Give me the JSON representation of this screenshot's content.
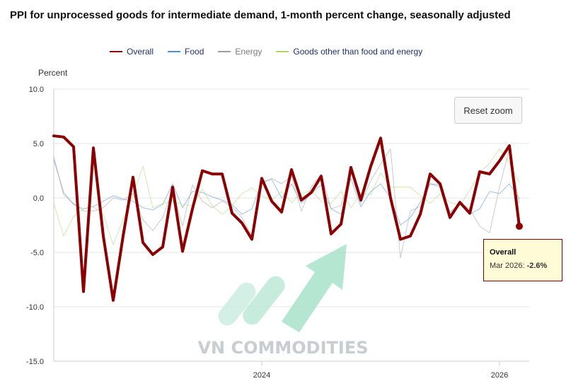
{
  "title": "PPI for unprocessed goods for intermediate demand, 1-month percent change, seasonally adjusted",
  "legend": [
    {
      "name": "Overall",
      "color": "#8b0000"
    },
    {
      "name": "Food",
      "color": "#4a90d9"
    },
    {
      "name": "Energy",
      "color": "#9e9e9e"
    },
    {
      "name": "Goods other than food and energy",
      "color": "#a8d86e"
    }
  ],
  "reset_zoom_label": "Reset zoom",
  "tooltip": {
    "series": "Overall",
    "label": "Mar 2026: ",
    "value": "-2.6%"
  },
  "watermark": "VN COMMODITIES",
  "chart_data": {
    "type": "line",
    "ylabel": "Percent",
    "ylim": [
      -15.0,
      10.0
    ],
    "yticks": [
      "10.0",
      "5.0",
      "0.0",
      "-5.0",
      "-10.0",
      "-15.0"
    ],
    "xlim": [
      "Apr 2022",
      "Apr 2026"
    ],
    "xticks": [
      {
        "label": "2024",
        "x": "Jan 2024"
      },
      {
        "label": "2026",
        "x": "Jan 2026"
      }
    ],
    "grid": true,
    "legend_position": "top",
    "x": [
      "Apr 2022",
      "May 2022",
      "Jun 2022",
      "Jul 2022",
      "Aug 2022",
      "Sep 2022",
      "Oct 2022",
      "Nov 2022",
      "Dec 2022",
      "Jan 2023",
      "Feb 2023",
      "Mar 2023",
      "Apr 2023",
      "May 2023",
      "Jun 2023",
      "Jul 2023",
      "Aug 2023",
      "Sep 2023",
      "Oct 2023",
      "Nov 2023",
      "Dec 2023",
      "Jan 2024",
      "Feb 2024",
      "Mar 2024",
      "Apr 2024",
      "May 2024",
      "Jun 2024",
      "Jul 2024",
      "Aug 2024",
      "Sep 2024",
      "Oct 2024",
      "Nov 2024",
      "Dec 2024",
      "Jan 2025",
      "Feb 2025",
      "Mar 2025",
      "Apr 2025",
      "May 2025",
      "Jun 2025",
      "Jul 2025",
      "Aug 2025",
      "Sep 2025",
      "Oct 2025",
      "Nov 2025",
      "Dec 2025",
      "Jan 2026",
      "Feb 2026",
      "Mar 2026"
    ],
    "series": [
      {
        "name": "Overall",
        "color": "#8b0000",
        "values": [
          5.7,
          5.6,
          4.7,
          -8.6,
          4.6,
          -3.5,
          -9.4,
          -3.5,
          1.9,
          -4.1,
          -5.2,
          -4.5,
          1.0,
          -4.9,
          -1.0,
          2.5,
          2.2,
          2.2,
          -1.4,
          -2.3,
          -3.8,
          1.8,
          -0.3,
          -1.3,
          2.6,
          -0.2,
          0.5,
          2.0,
          -3.3,
          -2.4,
          2.8,
          -0.2,
          2.9,
          5.5,
          0.0,
          -3.8,
          -3.5,
          -1.5,
          2.2,
          1.3,
          -1.8,
          -0.4,
          -1.4,
          2.4,
          2.2,
          3.4,
          4.8,
          -2.6
        ]
      },
      {
        "name": "Food",
        "color": "#4a90d9",
        "values": [
          3.5,
          0.5,
          -0.6,
          -1.0,
          -0.8,
          -0.3,
          0.2,
          -0.1,
          -0.3,
          -0.9,
          -1.1,
          -0.6,
          1.3,
          -0.9,
          0.6,
          0.5,
          0.1,
          -0.2,
          -0.6,
          -1.5,
          -1.0,
          1.5,
          1.7,
          0.0,
          1.3,
          -0.5,
          0.4,
          1.2,
          -1.0,
          -1.5,
          1.8,
          -0.8,
          0.6,
          1.3,
          0.0,
          -2.5,
          -1.8,
          -0.4,
          1.3,
          1.2,
          -1.3,
          -0.5,
          -1.5,
          -1.0,
          0.6,
          0.4,
          1.3,
          -0.1
        ]
      },
      {
        "name": "Energy",
        "color": "#9e9e9e",
        "values": [
          3.8,
          0.3,
          -0.5,
          -1.2,
          -1.2,
          -0.9,
          0.0,
          -0.2,
          0.4,
          -2.0,
          -3.0,
          -1.8,
          0.8,
          -2.6,
          1.2,
          -0.3,
          -0.9,
          -0.3,
          -0.8,
          -1.8,
          -3.5,
          1.3,
          1.8,
          1.3,
          2.0,
          -1.2,
          1.0,
          2.2,
          -1.0,
          -0.7,
          2.4,
          -0.5,
          1.6,
          3.1,
          4.5,
          -5.5,
          -1.2,
          -0.8,
          1.3,
          1.0,
          -1.5,
          -0.5,
          -1.0,
          -2.6,
          -3.2,
          1.0,
          4.5,
          -0.5
        ]
      },
      {
        "name": "Goods other than food and energy",
        "color": "#a8d86e",
        "values": [
          -0.5,
          -3.5,
          -1.7,
          -1.0,
          -0.8,
          -1.5,
          -4.3,
          -2.0,
          0.3,
          2.9,
          -0.9,
          -0.5,
          -0.3,
          -0.6,
          -0.7,
          0.8,
          -0.7,
          -1.5,
          -0.7,
          0.4,
          0.9,
          0.2,
          -0.2,
          0.6,
          -0.4,
          0.4,
          0.7,
          -0.3,
          -0.5,
          0.6,
          -0.9,
          0.4,
          0.3,
          2.3,
          1.0,
          1.0,
          1.0,
          0.2,
          -0.5,
          0.4,
          -0.4,
          -0.7,
          0.7,
          2.3,
          3.2,
          4.5,
          3.2,
          1.4
        ]
      }
    ]
  }
}
